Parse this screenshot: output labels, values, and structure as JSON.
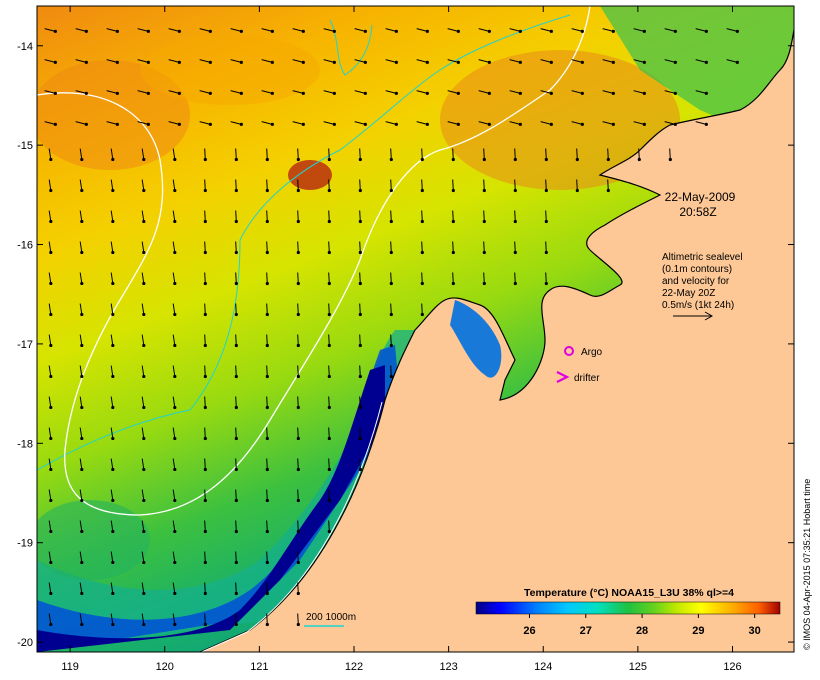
{
  "map": {
    "date_line": "22-May-2009",
    "time_line": "20:58Z",
    "lat_ticks": [
      "-14",
      "-15",
      "-16",
      "-17",
      "-18",
      "-19",
      "-20"
    ],
    "lon_ticks": [
      "119",
      "120",
      "121",
      "122",
      "123",
      "124",
      "125",
      "126"
    ],
    "lat_range": [
      -20.1,
      -13.6
    ],
    "lon_range": [
      118.65,
      126.65
    ],
    "land_color": "#fdc896",
    "sealevel_contour_color": "#ffffff",
    "isobath_color": "#1fd3d3",
    "velocity_arrow_color": "#000000"
  },
  "altimetry_note": {
    "lines": [
      "Altimetric sealevel",
      "(0.1m contours)",
      "and velocity for",
      "22-May 20Z",
      "0.5m/s (1kt 24h)"
    ]
  },
  "legend": {
    "argo_label": "Argo",
    "argo_symbol": "circle-icon",
    "argo_color": "#e000e0",
    "drifter_label": "drifter",
    "drifter_symbol": "chevron-icon",
    "drifter_color": "#e000e0",
    "bathymetry_label": "200  1000m"
  },
  "colorbar": {
    "title": "Temperature (°C) NOAA15_L3U 38% ql>=4",
    "ticks": [
      "26",
      "27",
      "28",
      "29",
      "30"
    ],
    "range": [
      25.05,
      30.45
    ],
    "colors": [
      "#000080",
      "#0000ff",
      "#0080ff",
      "#00c8ff",
      "#00e0c0",
      "#20c040",
      "#40c020",
      "#a0e000",
      "#ffff00",
      "#ffc000",
      "#ff8000",
      "#e04000",
      "#a00000"
    ]
  },
  "credit": "© IMOS 04-Apr-2015 07:35:21 Hobart time"
}
